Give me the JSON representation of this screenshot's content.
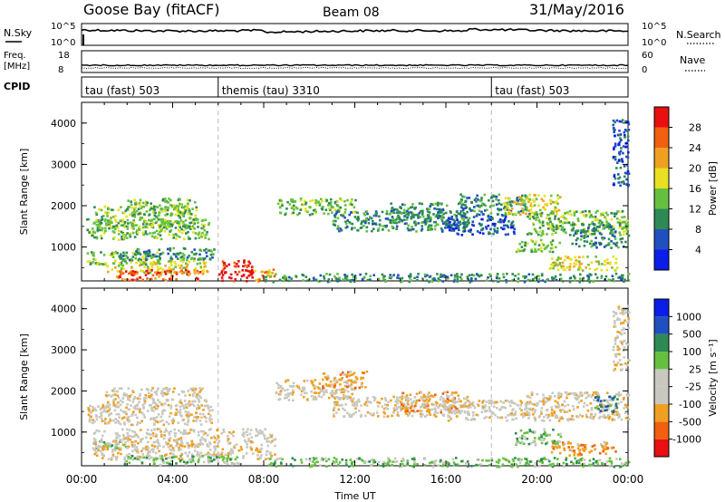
{
  "header": {
    "station": "Goose Bay (fitACF)",
    "beam": "Beam 08",
    "date": "31/May/2016"
  },
  "top_panels": {
    "nsky": {
      "label": "N.Sky",
      "tick_top": "10^5",
      "tick_bottom": "10^0",
      "right_label": "N.Search",
      "right_tick_top": "10^5",
      "right_tick_bottom": "10^0"
    },
    "freq": {
      "label_line1": "Freq.",
      "label_line2": "[MHz]",
      "tick_top": "18",
      "tick_bottom": "8",
      "right_label": "Nave",
      "right_tick_top": "60",
      "right_tick_bottom": "0"
    },
    "cpid": {
      "label": "CPID",
      "segments": [
        {
          "name": "tau (fast) 503",
          "start_hour": 0
        },
        {
          "name": "themis (tau) 3310",
          "start_hour": 6
        },
        {
          "name": "tau (fast) 503",
          "start_hour": 18
        }
      ]
    }
  },
  "x_axis": {
    "label": "Time UT",
    "ticks": [
      "00:00",
      "04:00",
      "08:00",
      "12:00",
      "16:00",
      "20:00",
      "00:00"
    ],
    "range_hours": [
      0,
      24
    ]
  },
  "panels": [
    {
      "name": "power",
      "ylabel": "Slant Range [km]",
      "yticks": [
        "1000",
        "2000",
        "3000",
        "4000"
      ],
      "colorbar_label": "Power [dB]",
      "colorbar_ticks": [
        "4",
        "8",
        "12",
        "16",
        "20",
        "24",
        "28"
      ],
      "colors": [
        "#0a1ee8",
        "#2050c0",
        "#2e8a54",
        "#66c040",
        "#e8e020",
        "#f0a020",
        "#f06010",
        "#e81010"
      ]
    },
    {
      "name": "velocity",
      "ylabel": "Slant Range [km]",
      "yticks": [
        "1000",
        "2000",
        "3000",
        "4000"
      ],
      "colorbar_label": "Velocity [m s⁻¹]",
      "colorbar_ticks": [
        "-1000",
        "-500",
        "-100",
        "-25",
        "25",
        "100",
        "500",
        "1000"
      ],
      "colors": [
        "#e81010",
        "#f06010",
        "#f0a020",
        "#c8c8c0",
        "#c8c8c0",
        "#66c040",
        "#2e8a54",
        "#2050c0",
        "#0a1ee8"
      ]
    }
  ],
  "chart_data": [
    {
      "type": "heatmap",
      "name": "Power",
      "x_unit": "hours UT",
      "y_unit": "km",
      "ylim": [
        180,
        4500
      ],
      "xlim": [
        0,
        24
      ],
      "clusters": [
        {
          "x": [
            0.2,
            5.7
          ],
          "y": [
            1200,
            1700
          ],
          "level": 3
        },
        {
          "x": [
            0.5,
            5.0
          ],
          "y": [
            1500,
            2000
          ],
          "level": 3
        },
        {
          "x": [
            2.0,
            5.0
          ],
          "y": [
            1800,
            2200
          ],
          "level": 3
        },
        {
          "x": [
            0.2,
            3.5
          ],
          "y": [
            600,
            900
          ],
          "level": 3
        },
        {
          "x": [
            1.2,
            5.8
          ],
          "y": [
            700,
            1000
          ],
          "level": 2
        },
        {
          "x": [
            1.0,
            5.5
          ],
          "y": [
            400,
            700
          ],
          "level": 4
        },
        {
          "x": [
            1.5,
            5.5
          ],
          "y": [
            220,
            480
          ],
          "level": 6
        },
        {
          "x": [
            6.0,
            7.5
          ],
          "y": [
            200,
            700
          ],
          "level": 7
        },
        {
          "x": [
            7.5,
            8.5
          ],
          "y": [
            200,
            500
          ],
          "level": 5
        },
        {
          "x": [
            8.5,
            12.0
          ],
          "y": [
            1800,
            2200
          ],
          "level": 3
        },
        {
          "x": [
            11.0,
            17.0
          ],
          "y": [
            1400,
            1900
          ],
          "level": 2
        },
        {
          "x": [
            13.5,
            16.0
          ],
          "y": [
            1600,
            2100
          ],
          "level": 2
        },
        {
          "x": [
            16.0,
            19.0
          ],
          "y": [
            1300,
            1800
          ],
          "level": 1
        },
        {
          "x": [
            16.5,
            19.5
          ],
          "y": [
            1800,
            2300
          ],
          "level": 2
        },
        {
          "x": [
            18.5,
            21.0
          ],
          "y": [
            1800,
            2300
          ],
          "level": 4
        },
        {
          "x": [
            19.5,
            24.0
          ],
          "y": [
            1300,
            1900
          ],
          "level": 3
        },
        {
          "x": [
            21.5,
            24.0
          ],
          "y": [
            1000,
            1600
          ],
          "level": 2
        },
        {
          "x": [
            20.5,
            23.5
          ],
          "y": [
            450,
            800
          ],
          "level": 4
        },
        {
          "x": [
            19.0,
            21.0
          ],
          "y": [
            900,
            1200
          ],
          "level": 3
        },
        {
          "x": [
            8.0,
            24.0
          ],
          "y": [
            180,
            380
          ],
          "level": 2
        },
        {
          "x": [
            23.3,
            24.0
          ],
          "y": [
            2500,
            4100
          ],
          "level": 1
        }
      ]
    },
    {
      "type": "heatmap",
      "name": "Velocity",
      "x_unit": "hours UT",
      "y_unit": "km",
      "ylim": [
        180,
        4500
      ],
      "xlim": [
        0,
        24
      ],
      "clusters": [
        {
          "x": [
            0.2,
            5.7
          ],
          "y": [
            1200,
            1700
          ],
          "level": 3
        },
        {
          "x": [
            1.0,
            5.5
          ],
          "y": [
            1600,
            2100
          ],
          "level": 3
        },
        {
          "x": [
            0.2,
            2.0
          ],
          "y": [
            600,
            800
          ],
          "level": 5
        },
        {
          "x": [
            0.5,
            8.5
          ],
          "y": [
            350,
            1100
          ],
          "level": 3
        },
        {
          "x": [
            1.8,
            7.0
          ],
          "y": [
            230,
            450
          ],
          "level": 5
        },
        {
          "x": [
            8.5,
            12.0
          ],
          "y": [
            1800,
            2300
          ],
          "level": 3
        },
        {
          "x": [
            10.5,
            12.5
          ],
          "y": [
            2100,
            2500
          ],
          "level": 2
        },
        {
          "x": [
            11.0,
            17.0
          ],
          "y": [
            1400,
            1900
          ],
          "level": 3
        },
        {
          "x": [
            14.0,
            16.5
          ],
          "y": [
            1500,
            2000
          ],
          "level": 2
        },
        {
          "x": [
            16.0,
            19.5
          ],
          "y": [
            1300,
            1800
          ],
          "level": 3
        },
        {
          "x": [
            19.5,
            24.0
          ],
          "y": [
            1300,
            2000
          ],
          "level": 3
        },
        {
          "x": [
            22.5,
            23.5
          ],
          "y": [
            1500,
            1900
          ],
          "level": 6
        },
        {
          "x": [
            20.5,
            23.5
          ],
          "y": [
            450,
            800
          ],
          "level": 2
        },
        {
          "x": [
            19.0,
            21.0
          ],
          "y": [
            700,
            1100
          ],
          "level": 5
        },
        {
          "x": [
            8.0,
            24.0
          ],
          "y": [
            180,
            400
          ],
          "level": 5
        },
        {
          "x": [
            23.3,
            24.0
          ],
          "y": [
            2500,
            4100
          ],
          "level": 3
        }
      ]
    }
  ]
}
